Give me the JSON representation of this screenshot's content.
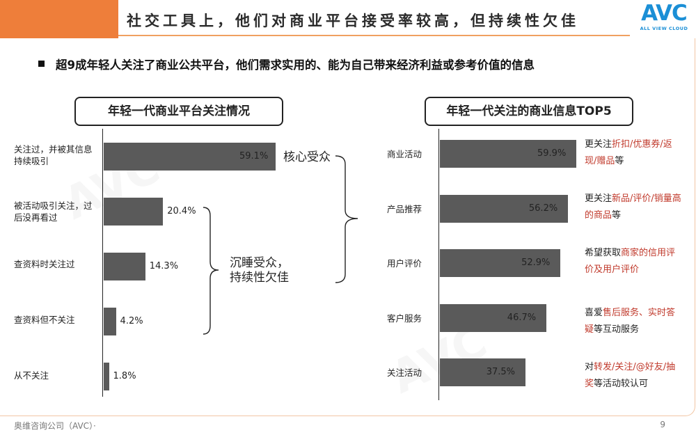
{
  "header": {
    "title": "社交工具上，他们对商业平台接受率较高，但持续性欠佳",
    "logo_text": "AVC",
    "logo_subtext": "ALL VIEW CLOUD"
  },
  "headline": "超9成年轻人关注了商业公共平台，他们需求实用的、能为自己带来经济利益或参考价值的信息",
  "colors": {
    "accent": "#ee7e3a",
    "bar": "#5a5a5a",
    "highlight": "#c0392b",
    "logo": "#1b8fd6"
  },
  "chart_data": [
    {
      "type": "bar",
      "orientation": "horizontal",
      "title": "年轻一代商业平台关注情况",
      "categories": [
        "关注过，并被其信息持续吸引",
        "被活动吸引关注，过后没再看过",
        "查资料时关注过",
        "查资料但不关注",
        "从不关注"
      ],
      "values": [
        59.1,
        20.4,
        14.3,
        4.2,
        1.8
      ],
      "value_labels": [
        "59.1%",
        "20.4%",
        "14.3%",
        "4.2%",
        "1.8%"
      ],
      "annotations": [
        "核心受众",
        "沉睡受众，\n持续性欠佳"
      ]
    },
    {
      "type": "bar",
      "orientation": "horizontal",
      "title": "年轻一代关注的商业信息TOP5",
      "categories": [
        "商业活动",
        "产品推荐",
        "用户评价",
        "客户服务",
        "关注活动"
      ],
      "values": [
        59.9,
        56.2,
        52.9,
        46.7,
        37.5
      ],
      "value_labels": [
        "59.9%",
        "56.2%",
        "52.9%",
        "46.7%",
        "37.5%"
      ]
    }
  ],
  "right_notes": [
    [
      {
        "t": "更关注",
        "h": false
      },
      {
        "t": "折扣/优惠券/返现/赠品",
        "h": true
      },
      {
        "t": "等",
        "h": false
      }
    ],
    [
      {
        "t": "更关注",
        "h": false
      },
      {
        "t": "新品/评价/销量高的商品",
        "h": true
      },
      {
        "t": "等",
        "h": false
      }
    ],
    [
      {
        "t": "希望获取",
        "h": false
      },
      {
        "t": "商家的信用评价及用户评价",
        "h": true
      }
    ],
    [
      {
        "t": "喜爱",
        "h": false
      },
      {
        "t": "售后服务、实时答疑",
        "h": true
      },
      {
        "t": "等互动服务",
        "h": false
      }
    ],
    [
      {
        "t": "对",
        "h": false
      },
      {
        "t": "转发/关注/@好友/抽奖",
        "h": true
      },
      {
        "t": "等活动较认可",
        "h": false
      }
    ]
  ],
  "footer": {
    "source": "奥维咨询公司（AVC）·",
    "page": "9"
  }
}
